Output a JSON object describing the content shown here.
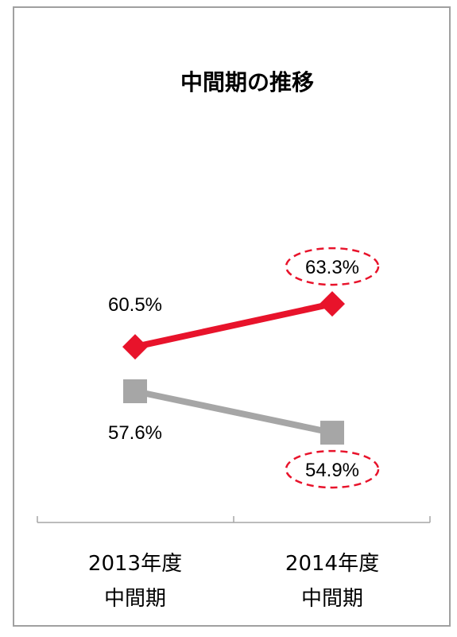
{
  "chart_data": {
    "type": "line",
    "title": "中間期の推移",
    "categories": [
      [
        "2013年度",
        "中間期"
      ],
      [
        "2014年度",
        "中間期"
      ]
    ],
    "ylim": [
      52,
      66
    ],
    "grid": false,
    "legend": "none",
    "series": [
      {
        "values": [
          60.5,
          63.3
        ],
        "labels": [
          "60.5%",
          "63.3%"
        ],
        "color": "#e8132b",
        "marker": "diamond",
        "highlight_last": true
      },
      {
        "values": [
          57.6,
          54.9
        ],
        "labels": [
          "57.6%",
          "54.9%"
        ],
        "color": "#a6a6a6",
        "marker": "square",
        "highlight_last": true
      }
    ],
    "highlight_color": "#e8132b"
  }
}
